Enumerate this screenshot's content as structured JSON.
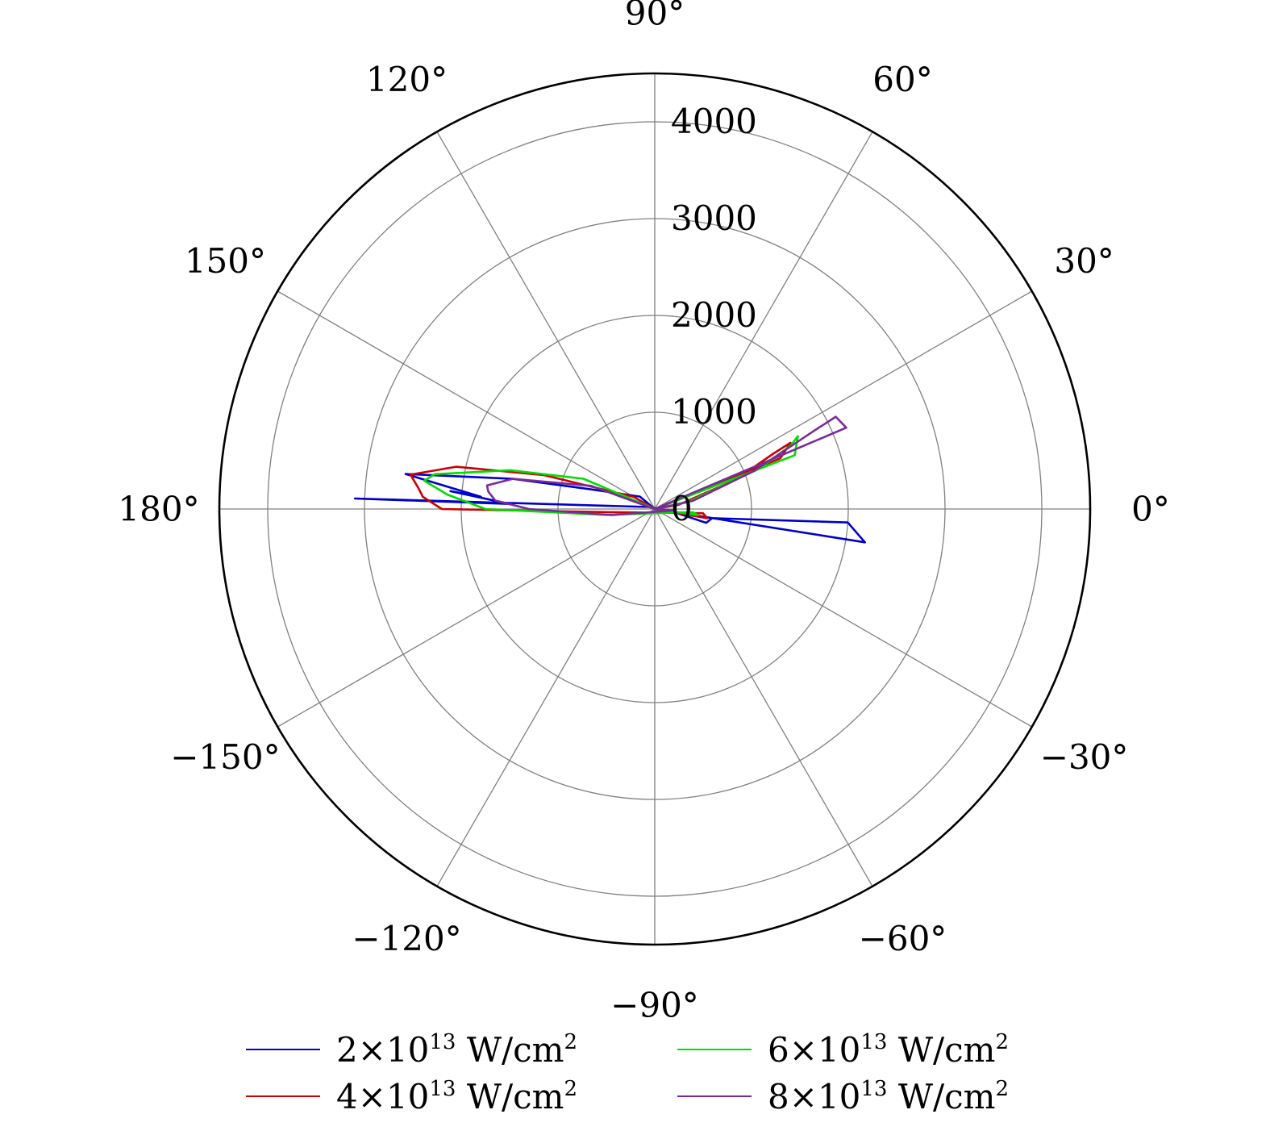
{
  "chart_data": {
    "type": "polar-line",
    "r_ticks": [
      "0",
      "1000",
      "2000",
      "3000",
      "4000"
    ],
    "r_values": [
      0,
      1000,
      2000,
      3000,
      4000
    ],
    "r_max": 4500,
    "theta_ticks": [
      {
        "deg": 0,
        "label": "0°"
      },
      {
        "deg": 30,
        "label": "30°"
      },
      {
        "deg": 60,
        "label": "60°"
      },
      {
        "deg": 90,
        "label": "90°"
      },
      {
        "deg": 120,
        "label": "120°"
      },
      {
        "deg": 150,
        "label": "150°"
      },
      {
        "deg": 180,
        "label": "180°"
      },
      {
        "deg": -150,
        "label": "−150°"
      },
      {
        "deg": -120,
        "label": "−120°"
      },
      {
        "deg": -90,
        "label": "−90°"
      },
      {
        "deg": -60,
        "label": "−60°"
      },
      {
        "deg": -30,
        "label": "−30°"
      }
    ],
    "grid": true,
    "legend_position": "bottom",
    "series": [
      {
        "name": "2×10¹³ W/cm²",
        "legend": {
          "mantissa": "2",
          "times": "×",
          "base": "10",
          "exp": "13",
          "unit": "W/cm",
          "unit_exp": "2"
        },
        "color": "#0000cc",
        "points": [
          [
            0,
            0
          ],
          [
            -9,
            2200
          ],
          [
            -4,
            2000
          ],
          [
            -9,
            600
          ],
          [
            -15,
            550
          ],
          [
            -9,
            200
          ],
          [
            160,
            60
          ],
          [
            178,
            3100
          ],
          [
            178,
            1500
          ],
          [
            175,
            2120
          ],
          [
            176,
            1800
          ],
          [
            172,
            2600
          ],
          [
            168,
            1500
          ],
          [
            163,
            700
          ],
          [
            140,
            200
          ],
          [
            0,
            0
          ]
        ]
      },
      {
        "name": "4×10¹³ W/cm²",
        "legend": {
          "mantissa": "4",
          "times": "×",
          "base": "10",
          "exp": "13",
          "unit": "W/cm",
          "unit_exp": "2"
        },
        "color": "#cc0000",
        "points": [
          [
            0,
            0
          ],
          [
            22,
            1400
          ],
          [
            26,
            1560
          ],
          [
            25,
            1350
          ],
          [
            20,
            900
          ],
          [
            10,
            250
          ],
          [
            0,
            0
          ],
          [
            -10,
            550
          ],
          [
            -5,
            500
          ],
          [
            -8,
            300
          ],
          [
            184,
            470
          ],
          [
            180,
            2200
          ],
          [
            177,
            2400
          ],
          [
            175,
            2450
          ],
          [
            172,
            2550
          ],
          [
            168,
            2100
          ],
          [
            163,
            1200
          ],
          [
            150,
            250
          ],
          [
            0,
            0
          ]
        ]
      },
      {
        "name": "6×10¹³ W/cm²",
        "legend": {
          "mantissa": "6",
          "times": "×",
          "base": "10",
          "exp": "13",
          "unit": "W/cm",
          "unit_exp": "2"
        },
        "color": "#00dd00",
        "points": [
          [
            0,
            0
          ],
          [
            21,
            1550
          ],
          [
            27,
            1660
          ],
          [
            25,
            1550
          ],
          [
            21,
            1150
          ],
          [
            12,
            350
          ],
          [
            0,
            0
          ],
          [
            -8,
            450
          ],
          [
            -5,
            400
          ],
          [
            -8,
            250
          ],
          [
            187,
            500
          ],
          [
            180,
            1750
          ],
          [
            176,
            2150
          ],
          [
            173,
            2400
          ],
          [
            171,
            2300
          ],
          [
            165,
            1550
          ],
          [
            157,
            800
          ],
          [
            0,
            0
          ]
        ]
      },
      {
        "name": "8×10¹³ W/cm²",
        "legend": {
          "mantissa": "8",
          "times": "×",
          "base": "10",
          "exp": "13",
          "unit": "W/cm",
          "unit_exp": "2"
        },
        "color": "#7a2a9a",
        "points": [
          [
            0,
            0
          ],
          [
            23,
            2150
          ],
          [
            27,
            2100
          ],
          [
            26,
            1800
          ],
          [
            21,
            1100
          ],
          [
            12,
            400
          ],
          [
            0,
            0
          ],
          [
            -4,
            200
          ],
          [
            188,
            450
          ],
          [
            180,
            1300
          ],
          [
            177,
            1650
          ],
          [
            174,
            1730
          ],
          [
            172,
            1750
          ],
          [
            168,
            1500
          ],
          [
            160,
            700
          ],
          [
            0,
            0
          ]
        ]
      }
    ]
  }
}
